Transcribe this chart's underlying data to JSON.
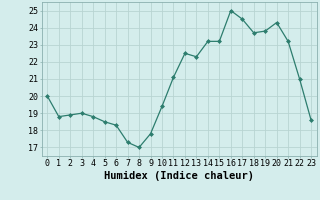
{
  "x": [
    0,
    1,
    2,
    3,
    4,
    5,
    6,
    7,
    8,
    9,
    10,
    11,
    12,
    13,
    14,
    15,
    16,
    17,
    18,
    19,
    20,
    21,
    22,
    23
  ],
  "y": [
    20.0,
    18.8,
    18.9,
    19.0,
    18.8,
    18.5,
    18.3,
    17.3,
    17.0,
    17.8,
    19.4,
    21.1,
    22.5,
    22.3,
    23.2,
    23.2,
    25.0,
    24.5,
    23.7,
    23.8,
    24.3,
    23.2,
    21.0,
    18.6
  ],
  "line_color": "#2d7d6e",
  "marker": "D",
  "marker_size": 2.0,
  "bg_color": "#d4edec",
  "grid_color": "#b8d4d2",
  "xlabel": "Humidex (Indice chaleur)",
  "ylim": [
    16.5,
    25.5
  ],
  "xlim": [
    -0.5,
    23.5
  ],
  "yticks": [
    17,
    18,
    19,
    20,
    21,
    22,
    23,
    24,
    25
  ],
  "xticks": [
    0,
    1,
    2,
    3,
    4,
    5,
    6,
    7,
    8,
    9,
    10,
    11,
    12,
    13,
    14,
    15,
    16,
    17,
    18,
    19,
    20,
    21,
    22,
    23
  ],
  "tick_label_fontsize": 6.0,
  "xlabel_fontsize": 7.5,
  "linewidth": 0.9
}
